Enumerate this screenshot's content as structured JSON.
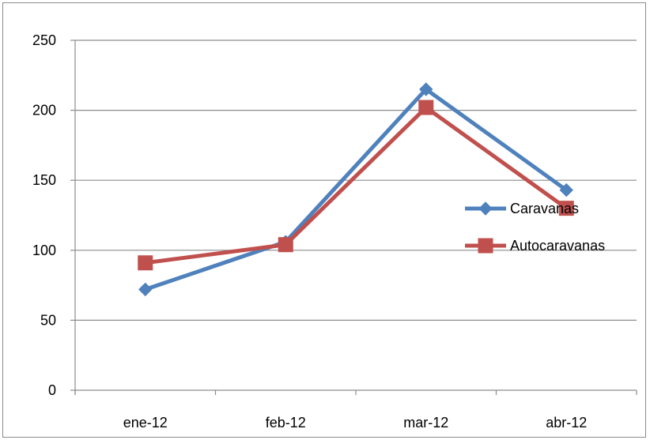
{
  "chart_data": {
    "type": "line",
    "categories": [
      "ene-12",
      "feb-12",
      "mar-12",
      "abr-12"
    ],
    "series": [
      {
        "name": "Caravanas",
        "values": [
          72,
          106,
          215,
          143
        ],
        "color": "#4F81BD",
        "marker": "diamond"
      },
      {
        "name": "Autocaravanas",
        "values": [
          91,
          104,
          202,
          130
        ],
        "color": "#C0504D",
        "marker": "square"
      }
    ],
    "yticks": [
      "0",
      "50",
      "100",
      "150",
      "200",
      "250"
    ],
    "ylim": [
      0,
      250
    ],
    "grid": "horizontal",
    "legend_position": "right",
    "title": "",
    "xlabel": "",
    "ylabel": ""
  }
}
